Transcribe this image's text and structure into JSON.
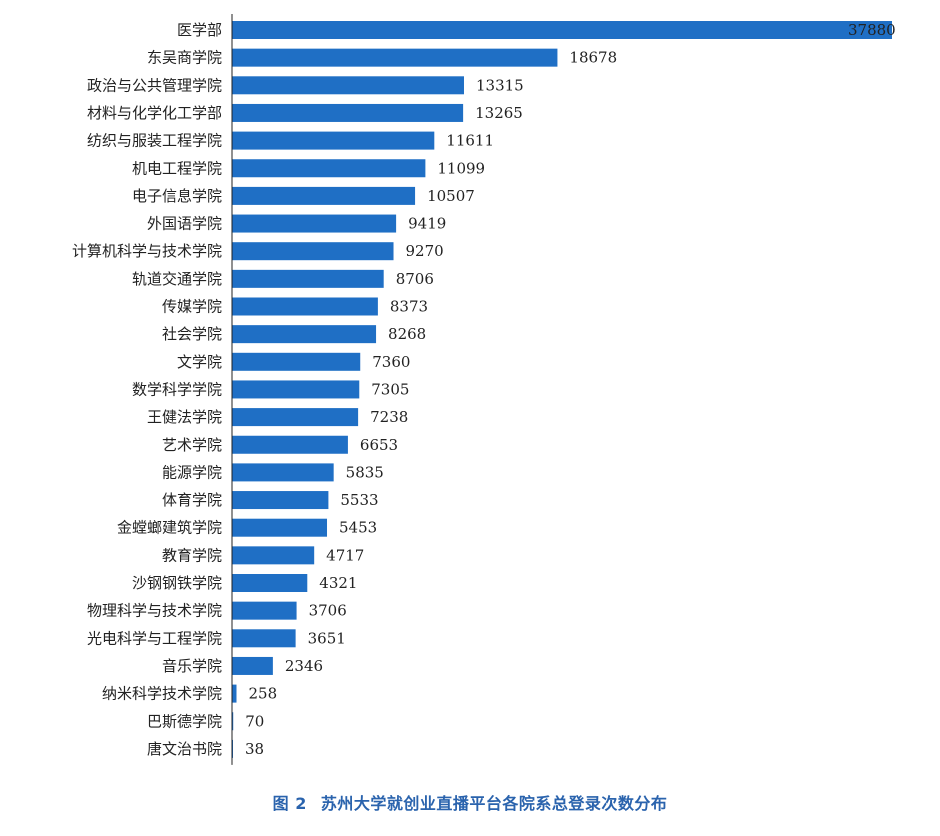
{
  "caption": {
    "figure_number": "图 2",
    "title": "苏州大学就创业直播平台各院系总登录次数分布"
  },
  "colors": {
    "bar": "#1f6fc5",
    "caption": "#2a63ad"
  },
  "chart_data": {
    "type": "bar",
    "orientation": "horizontal",
    "title": "苏州大学就创业直播平台各院系总登录次数分布",
    "xlabel": "",
    "ylabel": "",
    "categories": [
      "医学部",
      "东吴商学院",
      "政治与公共管理学院",
      "材料与化学化工学部",
      "纺织与服装工程学院",
      "机电工程学院",
      "电子信息学院",
      "外国语学院",
      "计算机科学与技术学院",
      "轨道交通学院",
      "传媒学院",
      "社会学院",
      "文学院",
      "数学科学学院",
      "王健法学院",
      "艺术学院",
      "能源学院",
      "体育学院",
      "金螳螂建筑学院",
      "教育学院",
      "沙钢钢铁学院",
      "物理科学与技术学院",
      "光电科学与工程学院",
      "音乐学院",
      "纳米科学技术学院",
      "巴斯德学院",
      "唐文治书院"
    ],
    "values": [
      37880,
      18678,
      13315,
      13265,
      11611,
      11099,
      10507,
      9419,
      9270,
      8706,
      8373,
      8268,
      7360,
      7305,
      7238,
      6653,
      5835,
      5533,
      5453,
      4717,
      4321,
      3706,
      3651,
      2346,
      258,
      70,
      38
    ],
    "value_labels": [
      "37880",
      "18678",
      "13315",
      "13265",
      "11611",
      "11099",
      "10507",
      "9419",
      "9270",
      "8706",
      "8373",
      "8268",
      "7360",
      "7305",
      "7238",
      "6653",
      "5835",
      "5533",
      "5453",
      "4717",
      "4321",
      "3706",
      "3651",
      "2346",
      "258",
      "70",
      "38"
    ],
    "xlim": [
      0,
      37880
    ],
    "grid": false,
    "legend": "none"
  }
}
